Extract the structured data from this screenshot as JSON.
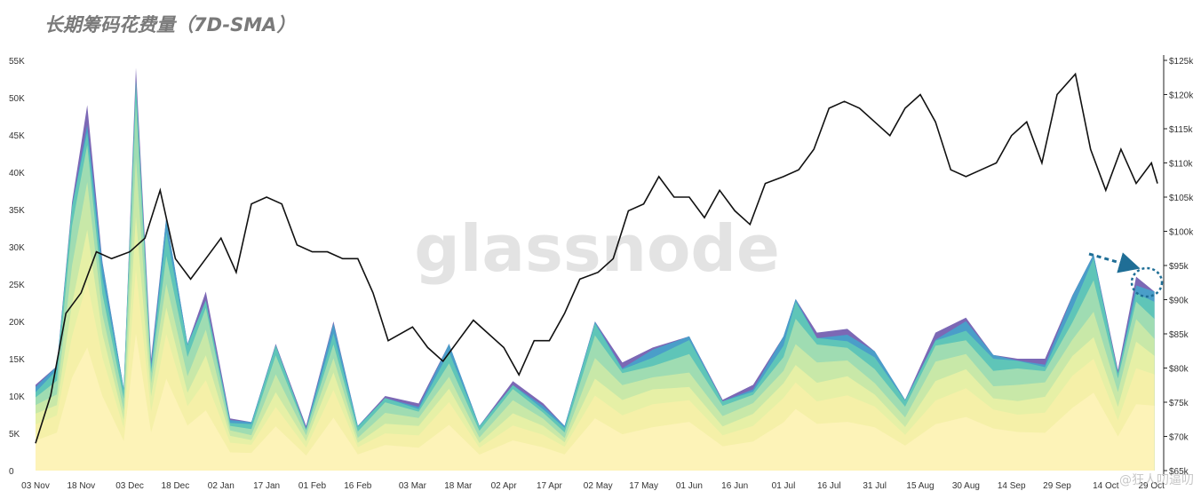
{
  "title": "长期筹码花费量（7D-SMA）",
  "watermark": "glassnode",
  "credit": "@狂人叨逼叨",
  "colors": {
    "price_line": "#111111",
    "bands": [
      "#fdf3b8",
      "#f5f0a8",
      "#e6f0a6",
      "#c8e8a8",
      "#9fdcb2",
      "#5fc5b8",
      "#4a9ec9",
      "#7c68b5"
    ],
    "arrow": "#1f6e96"
  },
  "chart_data": {
    "type": "area",
    "x_tick_labels": [
      "03 Nov",
      "18 Nov",
      "03 Dec",
      "18 Dec",
      "02 Jan",
      "17 Jan",
      "01 Feb",
      "16 Feb",
      "03 Mar",
      "18 Mar",
      "02 Apr",
      "17 Apr",
      "02 May",
      "17 May",
      "01 Jun",
      "16 Jun",
      "01 Jul",
      "16 Jul",
      "31 Jul",
      "15 Aug",
      "30 Aug",
      "14 Sep",
      "29 Sep",
      "14 Oct",
      "29 Oct"
    ],
    "y_left": {
      "ticks": [
        "0",
        "5K",
        "10K",
        "15K",
        "20K",
        "25K",
        "30K",
        "35K",
        "40K",
        "45K",
        "50K",
        "55K"
      ],
      "lim": [
        0,
        55000
      ]
    },
    "y_right": {
      "ticks": [
        "$65k",
        "$70k",
        "$75k",
        "$80k",
        "$85k",
        "$90k",
        "$95k",
        "$100k",
        "$105k",
        "$110k",
        "$115k",
        "$120k",
        "$125k"
      ],
      "lim": [
        65000,
        125000
      ]
    },
    "series": [
      {
        "axis": "left",
        "x": [
          "03 Nov",
          "10 Nov",
          "15 Nov",
          "20 Nov",
          "25 Nov",
          "01 Dec",
          "05 Dec",
          "10 Dec",
          "15 Dec",
          "22 Dec",
          "28 Dec",
          "05 Jan",
          "12 Jan",
          "20 Jan",
          "30 Jan",
          "08 Feb",
          "16 Feb",
          "25 Feb",
          "05 Mar",
          "15 Mar",
          "25 Mar",
          "05 Apr",
          "15 Apr",
          "22 Apr",
          "01 May",
          "10 May",
          "20 May",
          "01 Jun",
          "12 Jun",
          "22 Jun",
          "01 Jul",
          "05 Jul",
          "12 Jul",
          "22 Jul",
          "31 Jul",
          "10 Aug",
          "20 Aug",
          "30 Aug",
          "08 Sep",
          "16 Sep",
          "25 Sep",
          "03 Oct",
          "10 Oct",
          "18 Oct",
          "24 Oct",
          "30 Oct"
        ],
        "y": [
          11500,
          14000,
          36000,
          49000,
          28000,
          11000,
          54000,
          15000,
          34000,
          17000,
          24000,
          7000,
          6500,
          17000,
          6000,
          20000,
          6000,
          10000,
          9000,
          17000,
          6000,
          12000,
          9000,
          6000,
          20000,
          14500,
          16500,
          18000,
          9500,
          11500,
          18000,
          23000,
          18500,
          19000,
          16000,
          9500,
          18500,
          20500,
          15500,
          15000,
          15000,
          23500,
          29000,
          13500,
          26000,
          24000
        ]
      },
      {
        "axis": "right",
        "x": [
          "03 Nov",
          "08 Nov",
          "13 Nov",
          "18 Nov",
          "23 Nov",
          "28 Nov",
          "03 Dec",
          "08 Dec",
          "13 Dec",
          "18 Dec",
          "23 Dec",
          "28 Dec",
          "02 Jan",
          "07 Jan",
          "12 Jan",
          "17 Jan",
          "22 Jan",
          "27 Jan",
          "01 Feb",
          "06 Feb",
          "11 Feb",
          "16 Feb",
          "21 Feb",
          "26 Feb",
          "03 Mar",
          "08 Mar",
          "13 Mar",
          "18 Mar",
          "23 Mar",
          "28 Mar",
          "02 Apr",
          "07 Apr",
          "12 Apr",
          "17 Apr",
          "22 Apr",
          "27 Apr",
          "02 May",
          "07 May",
          "12 May",
          "17 May",
          "22 May",
          "27 May",
          "01 Jun",
          "06 Jun",
          "11 Jun",
          "16 Jun",
          "21 Jun",
          "26 Jun",
          "01 Jul",
          "06 Jul",
          "11 Jul",
          "16 Jul",
          "21 Jul",
          "26 Jul",
          "31 Jul",
          "05 Aug",
          "10 Aug",
          "15 Aug",
          "20 Aug",
          "25 Aug",
          "30 Aug",
          "04 Sep",
          "09 Sep",
          "14 Sep",
          "19 Sep",
          "24 Sep",
          "29 Sep",
          "04 Oct",
          "09 Oct",
          "14 Oct",
          "19 Oct",
          "24 Oct",
          "29 Oct",
          "31 Oct"
        ],
        "y": [
          69000,
          76000,
          88000,
          91000,
          97000,
          96000,
          97000,
          99000,
          106000,
          96000,
          93000,
          96000,
          99000,
          94000,
          104000,
          105000,
          104000,
          98000,
          97000,
          97000,
          96000,
          96000,
          91000,
          84000,
          86000,
          83000,
          81000,
          84000,
          87000,
          85000,
          83000,
          79000,
          84000,
          84000,
          88000,
          93000,
          94000,
          96000,
          103000,
          104000,
          108000,
          105000,
          105000,
          102000,
          106000,
          103000,
          101000,
          107000,
          108000,
          109000,
          112000,
          118000,
          119000,
          118000,
          116000,
          114000,
          118000,
          120000,
          116000,
          109000,
          108000,
          109000,
          110000,
          114000,
          116000,
          110000,
          120000,
          123000,
          112000,
          106000,
          112000,
          107000,
          110000,
          107000
        ]
      }
    ]
  }
}
